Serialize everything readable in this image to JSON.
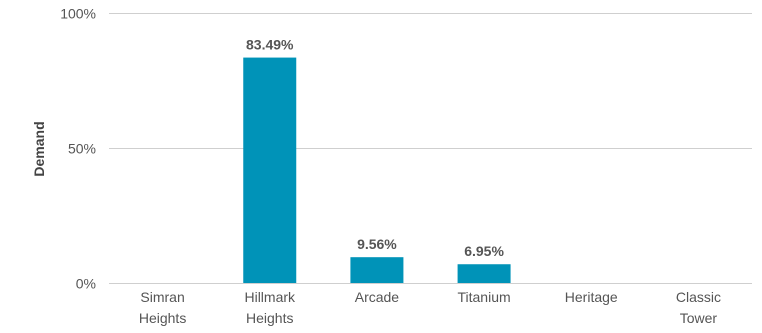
{
  "chart_data": {
    "type": "bar",
    "categories": [
      [
        "Simran",
        "Heights"
      ],
      [
        "Hillmark",
        "Heights"
      ],
      [
        "Arcade"
      ],
      [
        "Titanium"
      ],
      [
        "Heritage"
      ],
      [
        "Classic",
        "Tower"
      ]
    ],
    "values": [
      0,
      83.49,
      9.56,
      6.95,
      0,
      0
    ],
    "data_labels": [
      "",
      "83.49%",
      "9.56%",
      "6.95%",
      "",
      ""
    ],
    "ylabel": "Demand",
    "xlabel": "",
    "title": "",
    "ylim": [
      0,
      100
    ],
    "yticks": [
      0,
      50,
      100
    ],
    "ytick_labels": [
      "0%",
      "50%",
      "100%"
    ],
    "grid": true,
    "legend": "none",
    "bar_color": "#0093b8"
  }
}
